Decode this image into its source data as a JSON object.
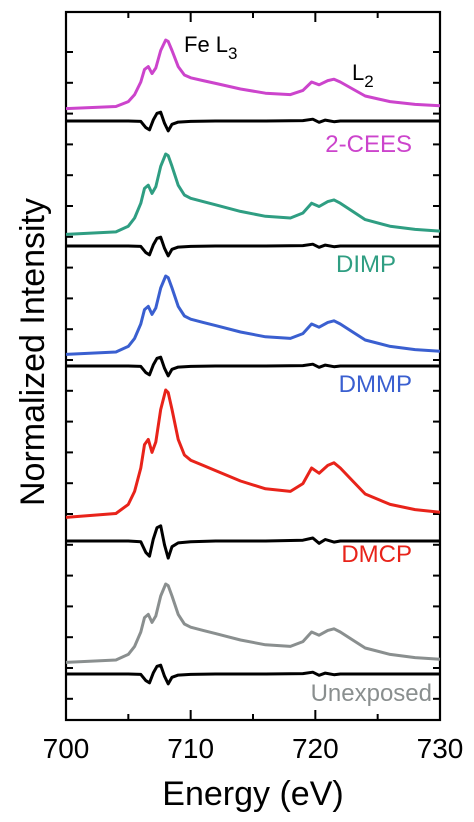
{
  "chart_data": {
    "type": "line",
    "xlabel": "Energy (eV)",
    "ylabel": "Normalized Intensity",
    "xlim": [
      700,
      730
    ],
    "x_ticks": [
      "700",
      "710",
      "720",
      "730"
    ],
    "grid": false,
    "annotations": {
      "l3_prefix": "Fe L",
      "l3_sub": "3",
      "l2_prefix": "L",
      "l2_sub": "2"
    },
    "colors": {
      "2-CEES": "#cc44cc",
      "DIMP": "#2f9e82",
      "DMMP": "#3a5fd0",
      "DMCP": "#e8231a",
      "Unexposed": "#8a8f8f",
      "difference": "#000000"
    },
    "series": [
      {
        "name": "2-CEES",
        "color": "#cc44cc",
        "x": [
          700,
          704,
          705,
          705.5,
          706,
          706.3,
          706.6,
          706.9,
          707.2,
          707.6,
          708.0,
          708.2,
          708.5,
          709.0,
          709.5,
          710,
          711,
          712,
          714,
          716,
          718,
          719,
          719.7,
          720.3,
          721,
          721.5,
          722,
          723,
          724,
          726,
          728,
          730
        ],
        "y": [
          0.02,
          0.05,
          0.12,
          0.22,
          0.4,
          0.58,
          0.62,
          0.52,
          0.6,
          0.85,
          1.0,
          0.98,
          0.85,
          0.62,
          0.5,
          0.46,
          0.42,
          0.38,
          0.3,
          0.24,
          0.22,
          0.28,
          0.4,
          0.36,
          0.42,
          0.44,
          0.4,
          0.3,
          0.2,
          0.12,
          0.08,
          0.06
        ]
      },
      {
        "name": "DIMP",
        "color": "#2f9e82",
        "x": [
          700,
          704,
          705,
          705.5,
          706,
          706.3,
          706.6,
          706.9,
          707.2,
          707.6,
          708.0,
          708.2,
          708.5,
          709.0,
          709.5,
          710,
          711,
          712,
          714,
          716,
          718,
          719,
          719.7,
          720.3,
          721,
          721.5,
          722,
          723,
          724,
          726,
          728,
          730
        ],
        "y": [
          0.02,
          0.05,
          0.12,
          0.22,
          0.4,
          0.58,
          0.62,
          0.52,
          0.6,
          0.85,
          1.0,
          0.98,
          0.85,
          0.62,
          0.5,
          0.46,
          0.42,
          0.38,
          0.3,
          0.24,
          0.22,
          0.28,
          0.4,
          0.36,
          0.42,
          0.44,
          0.4,
          0.3,
          0.2,
          0.12,
          0.08,
          0.06
        ]
      },
      {
        "name": "DMMP",
        "color": "#3a5fd0",
        "x": [
          700,
          704,
          705,
          705.5,
          706,
          706.3,
          706.6,
          706.9,
          707.2,
          707.6,
          708.0,
          708.2,
          708.5,
          709.0,
          709.5,
          710,
          711,
          712,
          714,
          716,
          718,
          719,
          719.7,
          720.3,
          721,
          721.5,
          722,
          723,
          724,
          726,
          728,
          730
        ],
        "y": [
          0.02,
          0.05,
          0.12,
          0.22,
          0.4,
          0.58,
          0.62,
          0.52,
          0.6,
          0.85,
          1.0,
          0.98,
          0.85,
          0.62,
          0.5,
          0.46,
          0.42,
          0.38,
          0.3,
          0.24,
          0.22,
          0.28,
          0.4,
          0.36,
          0.42,
          0.44,
          0.4,
          0.3,
          0.2,
          0.12,
          0.08,
          0.06
        ]
      },
      {
        "name": "DMCP",
        "color": "#e8231a",
        "x": [
          700,
          704,
          705,
          705.5,
          706,
          706.3,
          706.6,
          706.9,
          707.2,
          707.6,
          708.0,
          708.2,
          708.5,
          709.0,
          709.5,
          710,
          711,
          712,
          714,
          716,
          718,
          719,
          719.7,
          720.3,
          721,
          721.5,
          722,
          723,
          724,
          726,
          728,
          730
        ],
        "y": [
          0.02,
          0.05,
          0.12,
          0.22,
          0.4,
          0.58,
          0.62,
          0.52,
          0.6,
          0.85,
          1.0,
          0.98,
          0.85,
          0.62,
          0.5,
          0.46,
          0.42,
          0.38,
          0.3,
          0.24,
          0.22,
          0.28,
          0.4,
          0.36,
          0.42,
          0.44,
          0.4,
          0.3,
          0.2,
          0.12,
          0.08,
          0.06
        ]
      },
      {
        "name": "Unexposed",
        "color": "#8a8f8f",
        "x": [
          700,
          704,
          705,
          705.5,
          706,
          706.3,
          706.6,
          706.9,
          707.2,
          707.6,
          708.0,
          708.2,
          708.5,
          709.0,
          709.5,
          710,
          711,
          712,
          714,
          716,
          718,
          719,
          719.7,
          720.3,
          721,
          721.5,
          722,
          723,
          724,
          726,
          728,
          730
        ],
        "y": [
          0.02,
          0.05,
          0.12,
          0.22,
          0.4,
          0.58,
          0.62,
          0.52,
          0.6,
          0.85,
          1.0,
          0.98,
          0.85,
          0.62,
          0.5,
          0.46,
          0.42,
          0.38,
          0.3,
          0.24,
          0.22,
          0.28,
          0.4,
          0.36,
          0.42,
          0.44,
          0.4,
          0.3,
          0.2,
          0.12,
          0.08,
          0.06
        ]
      }
    ],
    "difference_curve": {
      "color": "#000000",
      "x": [
        700,
        705,
        706,
        706.4,
        706.7,
        707.0,
        707.3,
        707.6,
        707.9,
        708.2,
        708.5,
        709,
        710,
        712,
        716,
        719,
        719.8,
        720.3,
        720.8,
        721.5,
        722,
        724,
        730
      ],
      "y": [
        0,
        0,
        -0.02,
        -0.3,
        -0.4,
        0.05,
        0.35,
        0.4,
        -0.1,
        -0.45,
        -0.15,
        -0.05,
        -0.02,
        0,
        0,
        0.02,
        0.08,
        -0.06,
        0.04,
        -0.03,
        0,
        0,
        0
      ]
    },
    "legend_placement": "below each spectrum, right side"
  }
}
